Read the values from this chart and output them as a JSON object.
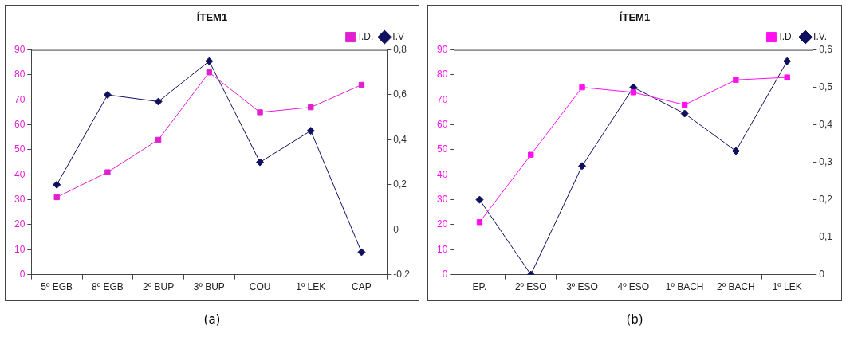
{
  "chart_data": [
    {
      "type": "line",
      "title": "ÍTEM1",
      "categories": [
        "5º EGB",
        "8º EGB",
        "2º BUP",
        "3º BUP",
        "COU",
        "1º LEK",
        "CAP"
      ],
      "series": [
        {
          "name": "I.D.",
          "color": "#e020d0",
          "marker": "square",
          "values": [
            31,
            41,
            54,
            81,
            65,
            67,
            76
          ]
        },
        {
          "name": "I.V",
          "color": "#101060",
          "marker": "diamond",
          "axis": "y2",
          "values": [
            0.2,
            0.6,
            0.57,
            0.75,
            0.3,
            0.44,
            -0.1
          ]
        }
      ],
      "ylim": [
        0,
        90
      ],
      "yticks": [
        0,
        10,
        20,
        30,
        40,
        50,
        60,
        70,
        80,
        90
      ],
      "y2lim": [
        -0.2,
        0.8
      ],
      "y2ticks": [
        {
          "value": -0.2,
          "label": "-0,2"
        },
        0,
        {
          "value": 0.2,
          "label": "0,2"
        },
        {
          "value": 0.4,
          "label": "0,4"
        },
        {
          "value": 0.6,
          "label": "0,6"
        },
        {
          "value": 0.8,
          "label": "0,8"
        }
      ],
      "grid": false,
      "legend": "top right",
      "annotations": [
        "(a)"
      ]
    },
    {
      "type": "line",
      "title": "ÍTEM1",
      "categories": [
        "EP.",
        "2º ESO",
        "3º ESO",
        "4º ESO",
        "1º BACH",
        "2º BACH",
        "1º LEK"
      ],
      "series": [
        {
          "name": "I.D.",
          "color": "#ff10f0",
          "marker": "square",
          "values": [
            21,
            48,
            75,
            73,
            68,
            78,
            79
          ]
        },
        {
          "name": "I.V.",
          "color": "#101060",
          "marker": "diamond",
          "axis": "y2",
          "values": [
            0.2,
            0,
            0.29,
            0.5,
            0.43,
            0.33,
            0.57
          ]
        }
      ],
      "ylim": [
        0,
        90
      ],
      "yticks": [
        0,
        10,
        20,
        30,
        40,
        50,
        60,
        70,
        80,
        90
      ],
      "y2lim": [
        0,
        0.6
      ],
      "y2ticks": [
        0,
        {
          "value": 0.1,
          "label": "0,1"
        },
        {
          "value": 0.2,
          "label": "0,2"
        },
        {
          "value": 0.3,
          "label": "0,3"
        },
        {
          "value": 0.4,
          "label": "0,4"
        },
        {
          "value": 0.5,
          "label": "0,5"
        },
        {
          "value": 0.6,
          "label": "0,6"
        }
      ],
      "grid": false,
      "legend": "top right",
      "annotations": [
        "(b)"
      ]
    }
  ]
}
